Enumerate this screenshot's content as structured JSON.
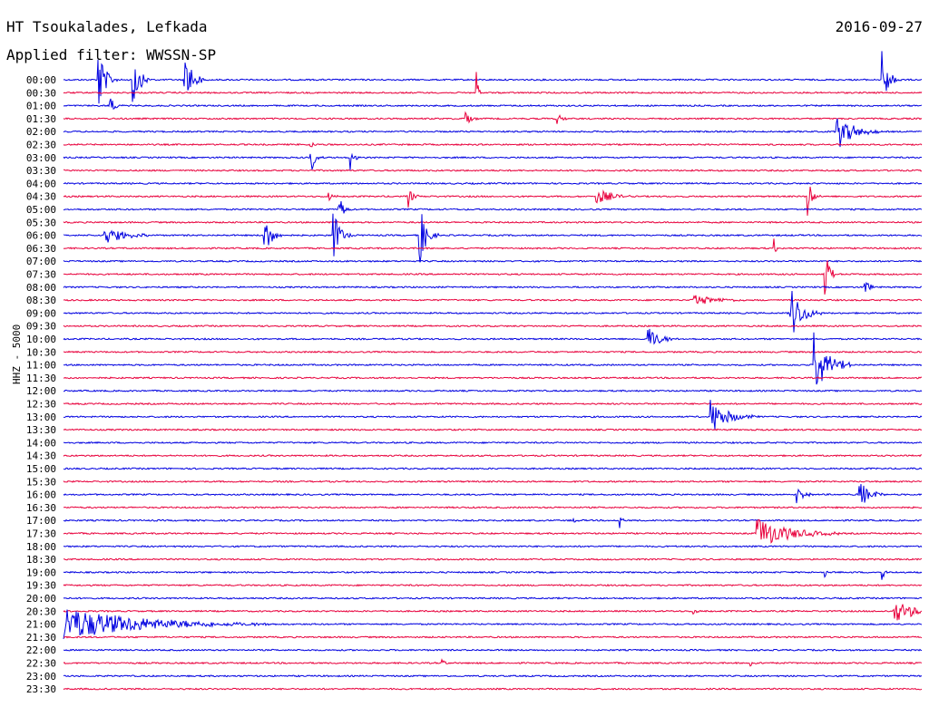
{
  "header": {
    "station": "HT Tsoukalades, Lefkada",
    "filter": "Applied filter: WWSSN-SP",
    "date": "2016-09-27"
  },
  "chart_data": {
    "type": "line",
    "title": "HT Tsoukalades, Lefkada",
    "subtitle": "Applied filter: WWSSN-SP",
    "ylabel": "HHZ - 5000",
    "xlabel": "",
    "colors": [
      "#0000e0",
      "#e8003c"
    ],
    "row_times": [
      "00:00",
      "00:30",
      "01:00",
      "01:30",
      "02:00",
      "02:30",
      "03:00",
      "03:30",
      "04:00",
      "04:30",
      "05:00",
      "05:30",
      "06:00",
      "06:30",
      "07:00",
      "07:30",
      "08:00",
      "08:30",
      "09:00",
      "09:30",
      "10:00",
      "10:30",
      "11:00",
      "11:30",
      "12:00",
      "12:30",
      "13:00",
      "13:30",
      "14:00",
      "14:30",
      "15:00",
      "15:30",
      "16:00",
      "16:30",
      "17:00",
      "17:30",
      "18:00",
      "18:30",
      "19:00",
      "19:30",
      "20:00",
      "20:30",
      "21:00",
      "21:30",
      "22:00",
      "22:30",
      "23:00",
      "23:30"
    ],
    "trace_minutes": 15,
    "events": [
      {
        "row": 0,
        "minute": 0.6,
        "amp": 3.0,
        "dur": 0.3
      },
      {
        "row": 0,
        "minute": 1.2,
        "amp": 2.5,
        "dur": 0.3
      },
      {
        "row": 0,
        "minute": 2.1,
        "amp": 3.6,
        "dur": 0.3
      },
      {
        "row": 0,
        "minute": 14.3,
        "amp": 2.6,
        "dur": 0.3
      },
      {
        "row": 1,
        "minute": 7.2,
        "amp": 2.6,
        "dur": 0.1
      },
      {
        "row": 2,
        "minute": 0.8,
        "amp": 1.0,
        "dur": 0.2
      },
      {
        "row": 3,
        "minute": 7.0,
        "amp": 1.0,
        "dur": 0.2
      },
      {
        "row": 3,
        "minute": 8.6,
        "amp": 0.8,
        "dur": 0.2
      },
      {
        "row": 4,
        "minute": 13.5,
        "amp": 1.8,
        "dur": 0.7
      },
      {
        "row": 5,
        "minute": 4.3,
        "amp": 1.5,
        "dur": 0.1
      },
      {
        "row": 6,
        "minute": 4.3,
        "amp": 2.0,
        "dur": 0.2
      },
      {
        "row": 6,
        "minute": 5.0,
        "amp": 1.2,
        "dur": 0.2
      },
      {
        "row": 9,
        "minute": 4.6,
        "amp": 0.6,
        "dur": 0.2
      },
      {
        "row": 9,
        "minute": 6.0,
        "amp": 1.2,
        "dur": 0.2
      },
      {
        "row": 9,
        "minute": 9.3,
        "amp": 0.8,
        "dur": 0.6
      },
      {
        "row": 9,
        "minute": 13.0,
        "amp": 1.8,
        "dur": 0.2
      },
      {
        "row": 10,
        "minute": 4.8,
        "amp": 1.5,
        "dur": 0.2
      },
      {
        "row": 12,
        "minute": 0.7,
        "amp": 0.8,
        "dur": 0.9
      },
      {
        "row": 12,
        "minute": 3.5,
        "amp": 2.0,
        "dur": 0.3
      },
      {
        "row": 12,
        "minute": 4.7,
        "amp": 2.4,
        "dur": 0.3
      },
      {
        "row": 12,
        "minute": 6.2,
        "amp": 3.0,
        "dur": 0.3
      },
      {
        "row": 13,
        "minute": 12.4,
        "amp": 1.5,
        "dur": 0.1
      },
      {
        "row": 15,
        "minute": 13.3,
        "amp": 2.3,
        "dur": 0.2
      },
      {
        "row": 16,
        "minute": 14.0,
        "amp": 0.8,
        "dur": 0.2
      },
      {
        "row": 17,
        "minute": 11.0,
        "amp": 0.5,
        "dur": 1.0
      },
      {
        "row": 18,
        "minute": 12.7,
        "amp": 2.3,
        "dur": 0.5
      },
      {
        "row": 20,
        "minute": 10.2,
        "amp": 1.2,
        "dur": 0.5
      },
      {
        "row": 22,
        "minute": 13.1,
        "amp": 3.5,
        "dur": 0.6
      },
      {
        "row": 26,
        "minute": 11.3,
        "amp": 1.4,
        "dur": 0.8
      },
      {
        "row": 32,
        "minute": 12.8,
        "amp": 0.8,
        "dur": 0.3
      },
      {
        "row": 32,
        "minute": 13.9,
        "amp": 1.2,
        "dur": 0.5
      },
      {
        "row": 34,
        "minute": 8.9,
        "amp": 0.8,
        "dur": 0.1
      },
      {
        "row": 34,
        "minute": 9.7,
        "amp": 1.4,
        "dur": 0.1
      },
      {
        "row": 35,
        "minute": 12.1,
        "amp": 1.4,
        "dur": 1.4
      },
      {
        "row": 38,
        "minute": 13.3,
        "amp": 0.6,
        "dur": 0.1
      },
      {
        "row": 38,
        "minute": 14.3,
        "amp": 1.0,
        "dur": 0.1
      },
      {
        "row": 41,
        "minute": 11.0,
        "amp": 0.4,
        "dur": 0.2
      },
      {
        "row": 41,
        "minute": 14.5,
        "amp": 1.0,
        "dur": 1.0
      },
      {
        "row": 42,
        "minute": 0.0,
        "amp": 1.4,
        "dur": 3.6
      },
      {
        "row": 45,
        "minute": 6.6,
        "amp": 0.3,
        "dur": 0.2
      },
      {
        "row": 45,
        "minute": 12.0,
        "amp": 0.3,
        "dur": 0.2
      }
    ]
  }
}
